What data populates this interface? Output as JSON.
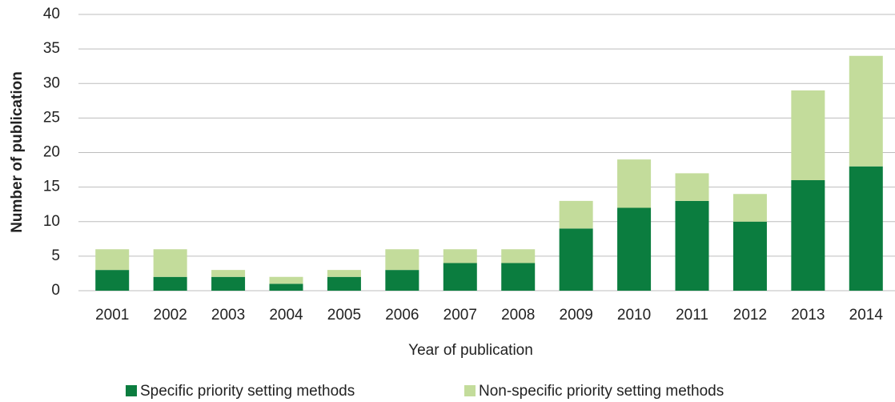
{
  "chart_data": {
    "type": "bar",
    "stacked": true,
    "x_label": "Year of publication",
    "y_label": "Number of publication",
    "categories": [
      "2001",
      "2002",
      "2003",
      "2004",
      "2005",
      "2006",
      "2007",
      "2008",
      "2009",
      "2010",
      "2011",
      "2012",
      "2013",
      "2014"
    ],
    "series": [
      {
        "name": "Specific priority setting methods",
        "color": "#0b7d3f",
        "values": [
          3,
          2,
          2,
          1,
          2,
          3,
          4,
          4,
          9,
          12,
          13,
          10,
          16,
          18
        ]
      },
      {
        "name": "Non-specific priority setting methods",
        "color": "#c3dc9b",
        "values": [
          3,
          4,
          1,
          1,
          1,
          3,
          2,
          2,
          4,
          7,
          4,
          4,
          13,
          16
        ]
      }
    ],
    "ylim": [
      0,
      40
    ],
    "yticks": [
      0,
      5,
      10,
      15,
      20,
      25,
      30,
      35,
      40
    ],
    "grid": true,
    "legend": "bottom"
  }
}
